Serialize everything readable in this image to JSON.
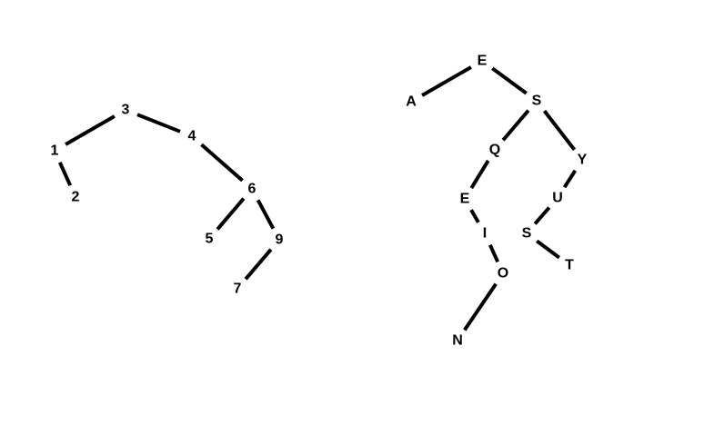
{
  "trees": [
    {
      "nodes": [
        {
          "id": "n3",
          "label": "3"
        },
        {
          "id": "n1",
          "label": "1"
        },
        {
          "id": "n2",
          "label": "2"
        },
        {
          "id": "n4",
          "label": "4"
        },
        {
          "id": "n6",
          "label": "6"
        },
        {
          "id": "n5",
          "label": "5"
        },
        {
          "id": "n9",
          "label": "9"
        },
        {
          "id": "n7",
          "label": "7"
        }
      ],
      "edges": [
        [
          "n3",
          "n1"
        ],
        [
          "n1",
          "n2"
        ],
        [
          "n3",
          "n4"
        ],
        [
          "n4",
          "n6"
        ],
        [
          "n6",
          "n5"
        ],
        [
          "n6",
          "n9"
        ],
        [
          "n9",
          "n7"
        ]
      ]
    },
    {
      "nodes": [
        {
          "id": "rE",
          "label": "E"
        },
        {
          "id": "rA",
          "label": "A"
        },
        {
          "id": "rS",
          "label": "S"
        },
        {
          "id": "rQ",
          "label": "Q"
        },
        {
          "id": "rY",
          "label": "Y"
        },
        {
          "id": "rE2",
          "label": "E"
        },
        {
          "id": "rU",
          "label": "U"
        },
        {
          "id": "rI",
          "label": "I"
        },
        {
          "id": "rS2",
          "label": "S"
        },
        {
          "id": "rT",
          "label": "T"
        },
        {
          "id": "rO",
          "label": "O"
        },
        {
          "id": "rN",
          "label": "N"
        }
      ],
      "edges": [
        [
          "rE",
          "rA"
        ],
        [
          "rE",
          "rS"
        ],
        [
          "rS",
          "rQ"
        ],
        [
          "rS",
          "rY"
        ],
        [
          "rQ",
          "rE2"
        ],
        [
          "rE2",
          "rI"
        ],
        [
          "rI",
          "rO"
        ],
        [
          "rO",
          "rN"
        ],
        [
          "rY",
          "rU"
        ],
        [
          "rU",
          "rS2"
        ],
        [
          "rS2",
          "rT"
        ]
      ]
    }
  ]
}
